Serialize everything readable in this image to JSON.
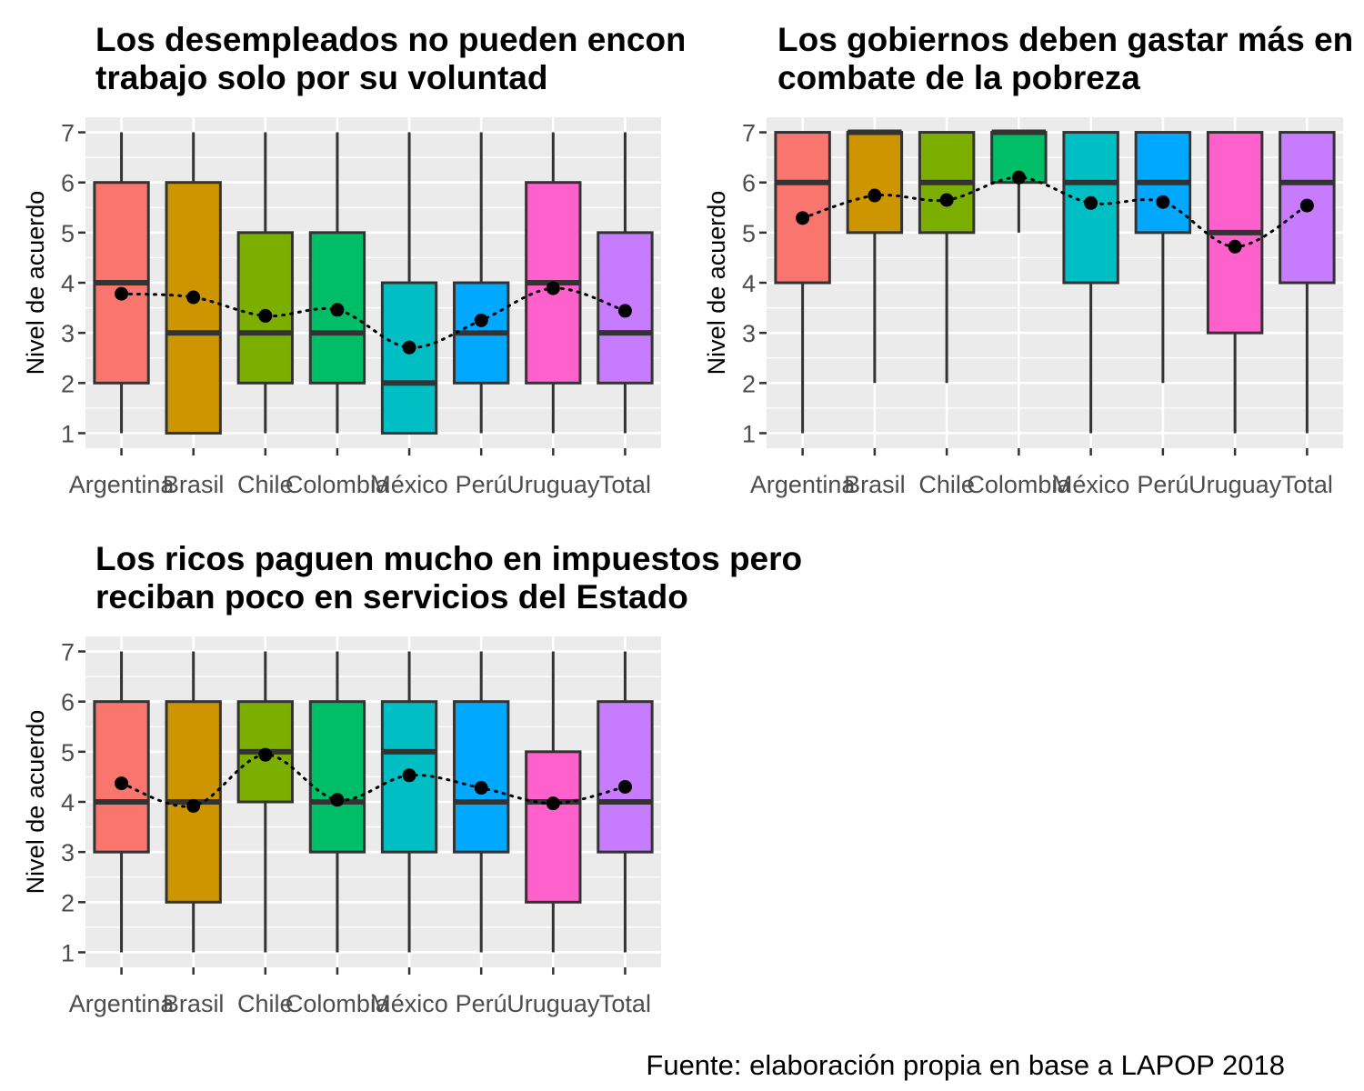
{
  "caption": "Fuente: elaboración propia en base a LAPOP 2018",
  "colors": {
    "Argentina": "#F8766D",
    "Brasil": "#CD9600",
    "Chile": "#7CAE00",
    "Colombia": "#00BE67",
    "México": "#00BFC4",
    "Perú": "#00A9FF",
    "Uruguay": "#FF61CC",
    "Total": "#C77CFF"
  },
  "chart_data": [
    {
      "type": "box",
      "title_lines": [
        "Los desempleados no pueden encontrar",
        "trabajo solo por su voluntad"
      ],
      "ylabel": "Nivel de acuerdo",
      "ylim": [
        0.7,
        7.3
      ],
      "yticks": [
        1,
        2,
        3,
        4,
        5,
        6,
        7
      ],
      "categories": [
        "Argentina",
        "Brasil",
        "Chile",
        "Colombia",
        "México",
        "Perú",
        "Uruguay",
        "Total"
      ],
      "boxes": [
        {
          "min": 1,
          "q1": 2,
          "median": 4,
          "q3": 6,
          "max": 7,
          "mean": 3.78
        },
        {
          "min": 1,
          "q1": 1,
          "median": 3,
          "q3": 6,
          "max": 7,
          "mean": 3.71
        },
        {
          "min": 1,
          "q1": 2,
          "median": 3,
          "q3": 5,
          "max": 7,
          "mean": 3.34
        },
        {
          "min": 1,
          "q1": 2,
          "median": 3,
          "q3": 5,
          "max": 7,
          "mean": 3.46
        },
        {
          "min": 1,
          "q1": 1,
          "median": 2,
          "q3": 4,
          "max": 7,
          "mean": 2.71
        },
        {
          "min": 1,
          "q1": 2,
          "median": 3,
          "q3": 4,
          "max": 7,
          "mean": 3.25
        },
        {
          "min": 1,
          "q1": 2,
          "median": 4,
          "q3": 6,
          "max": 7,
          "mean": 3.89
        },
        {
          "min": 1,
          "q1": 2,
          "median": 3,
          "q3": 5,
          "max": 7,
          "mean": 3.44
        }
      ],
      "mean_line": "dotted"
    },
    {
      "type": "box",
      "title_lines": [
        "Los gobiernos deben gastar más en",
        "combate de la pobreza"
      ],
      "ylabel": "Nivel de acuerdo",
      "ylim": [
        0.7,
        7.3
      ],
      "yticks": [
        1,
        2,
        3,
        4,
        5,
        6,
        7
      ],
      "categories": [
        "Argentina",
        "Brasil",
        "Chile",
        "Colombia",
        "México",
        "Perú",
        "Uruguay",
        "Total"
      ],
      "boxes": [
        {
          "min": 1,
          "q1": 4,
          "median": 6,
          "q3": 7,
          "max": 7,
          "mean": 5.29
        },
        {
          "min": 2,
          "q1": 5,
          "median": 7,
          "q3": 7,
          "max": 7,
          "mean": 5.74
        },
        {
          "min": 2,
          "q1": 5,
          "median": 6,
          "q3": 7,
          "max": 7,
          "mean": 5.65
        },
        {
          "min": 5,
          "q1": 6,
          "median": 7,
          "q3": 7,
          "max": 7,
          "mean": 6.1
        },
        {
          "min": 1,
          "q1": 4,
          "median": 6,
          "q3": 7,
          "max": 7,
          "mean": 5.59
        },
        {
          "min": 2,
          "q1": 5,
          "median": 6,
          "q3": 7,
          "max": 7,
          "mean": 5.61
        },
        {
          "min": 1,
          "q1": 3,
          "median": 5,
          "q3": 7,
          "max": 7,
          "mean": 4.72
        },
        {
          "min": 1,
          "q1": 4,
          "median": 6,
          "q3": 7,
          "max": 7,
          "mean": 5.54
        }
      ],
      "mean_line": "dotted"
    },
    {
      "type": "box",
      "title_lines": [
        "Los ricos paguen mucho en impuestos pero",
        "reciban poco en servicios del Estado"
      ],
      "ylabel": "Nivel de acuerdo",
      "ylim": [
        0.7,
        7.3
      ],
      "yticks": [
        1,
        2,
        3,
        4,
        5,
        6,
        7
      ],
      "categories": [
        "Argentina",
        "Brasil",
        "Chile",
        "Colombia",
        "México",
        "Perú",
        "Uruguay",
        "Total"
      ],
      "boxes": [
        {
          "min": 1,
          "q1": 3,
          "median": 4,
          "q3": 6,
          "max": 7,
          "mean": 4.37
        },
        {
          "min": 1,
          "q1": 2,
          "median": 4,
          "q3": 6,
          "max": 7,
          "mean": 3.92
        },
        {
          "min": 1,
          "q1": 4,
          "median": 5,
          "q3": 6,
          "max": 7,
          "mean": 4.94
        },
        {
          "min": 1,
          "q1": 3,
          "median": 4,
          "q3": 6,
          "max": 7,
          "mean": 4.04
        },
        {
          "min": 1,
          "q1": 3,
          "median": 5,
          "q3": 6,
          "max": 7,
          "mean": 4.53
        },
        {
          "min": 1,
          "q1": 3,
          "median": 4,
          "q3": 6,
          "max": 7,
          "mean": 4.28
        },
        {
          "min": 1,
          "q1": 2,
          "median": 4,
          "q3": 5,
          "max": 7,
          "mean": 3.97
        },
        {
          "min": 1,
          "q1": 3,
          "median": 4,
          "q3": 6,
          "max": 7,
          "mean": 4.3
        }
      ],
      "mean_line": "dotted"
    }
  ]
}
